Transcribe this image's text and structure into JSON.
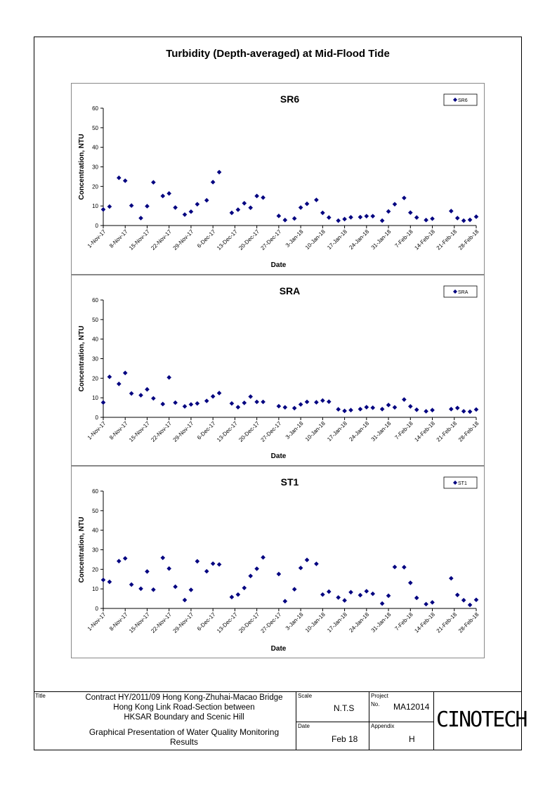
{
  "page_title": "Turbidity (Depth-averaged) at Mid-Flood Tide",
  "chart_data": [
    {
      "type": "scatter",
      "title": "SR6",
      "xlabel": "Date",
      "ylabel": "Concentration, NTU",
      "ylim": [
        0,
        60
      ],
      "yticks": [
        "0",
        "10",
        "20",
        "30",
        "40",
        "50",
        "60"
      ],
      "xticks": [
        "1-Nov-17",
        "8-Nov-17",
        "15-Nov-17",
        "22-Nov-17",
        "29-Nov-17",
        "6-Dec-17",
        "13-Dec-17",
        "20-Dec-17",
        "27-Dec-17",
        "3-Jan-18",
        "10-Jan-18",
        "17-Jan-18",
        "24-Jan-18",
        "31-Jan-18",
        "7-Feb-18",
        "14-Feb-18",
        "21-Feb-18",
        "28-Feb-18"
      ],
      "legend": "SR6",
      "legend_position": "top-right",
      "grid": false,
      "x": [
        "1-Nov-17",
        "3-Nov-17",
        "6-Nov-17",
        "8-Nov-17",
        "10-Nov-17",
        "13-Nov-17",
        "15-Nov-17",
        "17-Nov-17",
        "20-Nov-17",
        "22-Nov-17",
        "24-Nov-17",
        "27-Nov-17",
        "29-Nov-17",
        "1-Dec-17",
        "4-Dec-17",
        "6-Dec-17",
        "8-Dec-17",
        "12-Dec-17",
        "14-Dec-17",
        "16-Dec-17",
        "18-Dec-17",
        "20-Dec-17",
        "22-Dec-17",
        "27-Dec-17",
        "29-Dec-17",
        "1-Jan-18",
        "3-Jan-18",
        "5-Jan-18",
        "8-Jan-18",
        "10-Jan-18",
        "12-Jan-18",
        "15-Jan-18",
        "17-Jan-18",
        "19-Jan-18",
        "22-Jan-18",
        "24-Jan-18",
        "26-Jan-18",
        "29-Jan-18",
        "31-Jan-18",
        "2-Feb-18",
        "5-Feb-18",
        "7-Feb-18",
        "9-Feb-18",
        "12-Feb-18",
        "14-Feb-18",
        "20-Feb-18",
        "22-Feb-18",
        "24-Feb-18",
        "26-Feb-18",
        "28-Feb-18"
      ],
      "y": [
        8.2,
        9.7,
        24.4,
        22.9,
        10.2,
        3.8,
        9.9,
        22.1,
        15.1,
        16.4,
        9.2,
        5.6,
        7.1,
        10.9,
        12.9,
        22.2,
        27.3,
        6.5,
        8.1,
        11.4,
        9.1,
        15.1,
        14.3,
        4.9,
        2.8,
        3.6,
        9.2,
        11.1,
        13.1,
        6.5,
        4.1,
        2.5,
        3.3,
        4.2,
        4.3,
        4.8,
        4.8,
        2.5,
        7.2,
        10.9,
        14.1,
        6.6,
        4.1,
        2.8,
        3.5,
        7.4,
        3.8,
        2.5,
        2.9,
        4.5
      ]
    },
    {
      "type": "scatter",
      "title": "SRA",
      "xlabel": "Date",
      "ylabel": "Concentration, NTU",
      "ylim": [
        0,
        60
      ],
      "yticks": [
        "0",
        "10",
        "20",
        "30",
        "40",
        "50",
        "60"
      ],
      "xticks": [
        "1-Nov-17",
        "8-Nov-17",
        "15-Nov-17",
        "22-Nov-17",
        "29-Nov-17",
        "6-Dec-17",
        "13-Dec-17",
        "20-Dec-17",
        "27-Dec-17",
        "3-Jan-18",
        "10-Jan-18",
        "17-Jan-18",
        "24-Jan-18",
        "31-Jan-18",
        "7-Feb-18",
        "14-Feb-18",
        "21-Feb-18",
        "28-Feb-18"
      ],
      "legend": "SRA",
      "legend_position": "top-right",
      "grid": false,
      "x": [
        "1-Nov-17",
        "3-Nov-17",
        "6-Nov-17",
        "8-Nov-17",
        "10-Nov-17",
        "13-Nov-17",
        "15-Nov-17",
        "17-Nov-17",
        "20-Nov-17",
        "22-Nov-17",
        "24-Nov-17",
        "27-Nov-17",
        "29-Nov-17",
        "1-Dec-17",
        "4-Dec-17",
        "6-Dec-17",
        "8-Dec-17",
        "12-Dec-17",
        "14-Dec-17",
        "16-Dec-17",
        "18-Dec-17",
        "20-Dec-17",
        "22-Dec-17",
        "27-Dec-17",
        "29-Dec-17",
        "1-Jan-18",
        "3-Jan-18",
        "5-Jan-18",
        "8-Jan-18",
        "10-Jan-18",
        "12-Jan-18",
        "15-Jan-18",
        "17-Jan-18",
        "19-Jan-18",
        "22-Jan-18",
        "24-Jan-18",
        "26-Jan-18",
        "29-Jan-18",
        "31-Jan-18",
        "2-Feb-18",
        "5-Feb-18",
        "7-Feb-18",
        "9-Feb-18",
        "12-Feb-18",
        "14-Feb-18",
        "20-Feb-18",
        "22-Feb-18",
        "24-Feb-18",
        "26-Feb-18",
        "28-Feb-18"
      ],
      "y": [
        7.6,
        20.7,
        17.1,
        22.7,
        12.2,
        11.3,
        14.3,
        9.7,
        6.8,
        20.4,
        7.5,
        5.6,
        6.6,
        7.1,
        8.4,
        10.7,
        12.4,
        7.1,
        5.2,
        7.4,
        10.6,
        7.9,
        7.9,
        5.7,
        5.1,
        4.7,
        6.6,
        7.9,
        7.7,
        8.6,
        8.0,
        4.1,
        3.3,
        3.7,
        4.2,
        5.2,
        4.9,
        4.2,
        6.3,
        5.1,
        9.1,
        5.6,
        3.9,
        3.1,
        3.7,
        4.2,
        4.8,
        3.1,
        2.9,
        4.0
      ]
    },
    {
      "type": "scatter",
      "title": "ST1",
      "xlabel": "Date",
      "ylabel": "Concentration, NTU",
      "ylim": [
        0,
        60
      ],
      "yticks": [
        "0",
        "10",
        "20",
        "30",
        "40",
        "50",
        "60"
      ],
      "xticks": [
        "1-Nov-17",
        "8-Nov-17",
        "15-Nov-17",
        "22-Nov-17",
        "29-Nov-17",
        "6-Dec-17",
        "13-Dec-17",
        "20-Dec-17",
        "27-Dec-17",
        "3-Jan-18",
        "10-Jan-18",
        "17-Jan-18",
        "24-Jan-18",
        "31-Jan-18",
        "7-Feb-18",
        "14-Feb-18",
        "21-Feb-18",
        "28-Feb-18"
      ],
      "legend": "ST1",
      "legend_position": "top-right",
      "grid": false,
      "x": [
        "1-Nov-17",
        "3-Nov-17",
        "6-Nov-17",
        "8-Nov-17",
        "10-Nov-17",
        "13-Nov-17",
        "15-Nov-17",
        "17-Nov-17",
        "20-Nov-17",
        "22-Nov-17",
        "24-Nov-17",
        "27-Nov-17",
        "29-Nov-17",
        "1-Dec-17",
        "4-Dec-17",
        "6-Dec-17",
        "8-Dec-17",
        "12-Dec-17",
        "14-Dec-17",
        "16-Dec-17",
        "18-Dec-17",
        "20-Dec-17",
        "22-Dec-17",
        "27-Dec-17",
        "29-Dec-17",
        "1-Jan-18",
        "3-Jan-18",
        "5-Jan-18",
        "8-Jan-18",
        "10-Jan-18",
        "12-Jan-18",
        "15-Jan-18",
        "17-Jan-18",
        "19-Jan-18",
        "22-Jan-18",
        "24-Jan-18",
        "26-Jan-18",
        "29-Jan-18",
        "31-Jan-18",
        "2-Feb-18",
        "5-Feb-18",
        "7-Feb-18",
        "9-Feb-18",
        "12-Feb-18",
        "14-Feb-18",
        "20-Feb-18",
        "22-Feb-18",
        "24-Feb-18",
        "26-Feb-18",
        "28-Feb-18"
      ],
      "y": [
        14.6,
        13.6,
        24.2,
        25.6,
        12.2,
        10.1,
        18.9,
        9.6,
        25.9,
        20.4,
        11.1,
        4.3,
        9.5,
        24.1,
        19.0,
        22.9,
        22.5,
        5.8,
        7.1,
        10.5,
        16.6,
        20.3,
        26.1,
        17.6,
        3.7,
        9.8,
        20.7,
        24.8,
        22.8,
        7.1,
        8.6,
        5.6,
        4.1,
        8.3,
        6.8,
        8.8,
        7.5,
        2.5,
        6.5,
        21.2,
        21.1,
        13.1,
        5.4,
        2.2,
        3.1,
        15.4,
        6.9,
        4.2,
        1.8,
        4.4
      ]
    }
  ],
  "title_block": {
    "title_label": "Title",
    "title_lines": [
      "Contract HY/2011/09 Hong Kong-Zhuhai-Macao Bridge",
      "Hong Kong Link Road-Section between",
      "HKSAR Boundary and Scenic Hill"
    ],
    "subtitle_lines": [
      "Graphical Presentation of Water Quality Monitoring",
      "Results"
    ],
    "scale_label": "Scale",
    "scale_value": "N.T.S",
    "project_label": "Project",
    "no_label": "No.",
    "project_value": "MA12014",
    "date_label": "Date",
    "date_value": "Feb 18",
    "appendix_label": "Appendix",
    "appendix_value": "H",
    "logo": "CINOTECH"
  },
  "colors": {
    "marker": "#000080",
    "axis": "#000000",
    "frame": "#000000"
  }
}
